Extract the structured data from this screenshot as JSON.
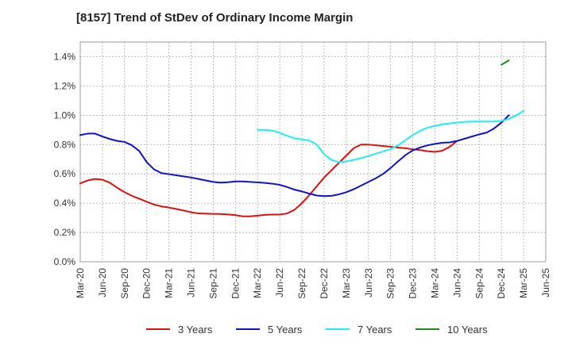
{
  "chart_data": {
    "type": "line",
    "title": "[8157]  Trend of StDev of Ordinary Income Margin",
    "xlabel": "",
    "ylabel": "",
    "ylim": [
      0,
      1.5
    ],
    "x_ticks": [
      "Mar-20",
      "Jun-20",
      "Sep-20",
      "Dec-20",
      "Mar-21",
      "Jun-21",
      "Sep-21",
      "Dec-21",
      "Mar-22",
      "Jun-22",
      "Sep-22",
      "Dec-22",
      "Mar-23",
      "Jun-23",
      "Sep-23",
      "Dec-23",
      "Mar-24",
      "Jun-24",
      "Sep-24",
      "Dec-24",
      "Mar-25",
      "Jun-25"
    ],
    "y_ticks": [
      0.0,
      0.2,
      0.4,
      0.6,
      0.8,
      1.0,
      1.2,
      1.4
    ],
    "y_tick_labels": [
      "0.0%",
      "0.2%",
      "0.4%",
      "0.6%",
      "0.8%",
      "1.0%",
      "1.2%",
      "1.4%"
    ],
    "grid": true,
    "legend_position": "bottom",
    "series": [
      {
        "name": "3 Years",
        "color": "#dd1111",
        "start_index": 0,
        "values": [
          0.535,
          0.555,
          0.565,
          0.56,
          0.54,
          0.505,
          0.475,
          0.45,
          0.43,
          0.41,
          0.39,
          0.378,
          0.37,
          0.36,
          0.35,
          0.338,
          0.33,
          0.328,
          0.327,
          0.326,
          0.323,
          0.318,
          0.31,
          0.31,
          0.315,
          0.32,
          0.322,
          0.322,
          0.33,
          0.355,
          0.4,
          0.455,
          0.515,
          0.575,
          0.625,
          0.675,
          0.725,
          0.775,
          0.8,
          0.8,
          0.795,
          0.79,
          0.785,
          0.78,
          0.775,
          0.768,
          0.762,
          0.755,
          0.75,
          0.758,
          0.785,
          0.825
        ]
      },
      {
        "name": "5 Years",
        "color": "#1111cc",
        "start_index": 0,
        "values": [
          0.865,
          0.875,
          0.875,
          0.855,
          0.838,
          0.825,
          0.818,
          0.795,
          0.755,
          0.68,
          0.63,
          0.605,
          0.598,
          0.59,
          0.583,
          0.575,
          0.565,
          0.555,
          0.545,
          0.54,
          0.543,
          0.548,
          0.548,
          0.545,
          0.542,
          0.538,
          0.533,
          0.525,
          0.51,
          0.492,
          0.48,
          0.465,
          0.452,
          0.448,
          0.45,
          0.46,
          0.475,
          0.495,
          0.52,
          0.545,
          0.57,
          0.6,
          0.64,
          0.685,
          0.728,
          0.76,
          0.78,
          0.795,
          0.805,
          0.812,
          0.815,
          0.825,
          0.84,
          0.855,
          0.87,
          0.882,
          0.91,
          0.95,
          1.0
        ]
      },
      {
        "name": "7 Years",
        "color": "#22eeee",
        "start_index": 24,
        "values": [
          0.9,
          0.9,
          0.895,
          0.88,
          0.86,
          0.843,
          0.835,
          0.828,
          0.8,
          0.735,
          0.695,
          0.68,
          0.685,
          0.695,
          0.708,
          0.722,
          0.738,
          0.753,
          0.77,
          0.795,
          0.83,
          0.865,
          0.895,
          0.915,
          0.928,
          0.938,
          0.945,
          0.95,
          0.955,
          0.957,
          0.958,
          0.957,
          0.958,
          0.962,
          0.975,
          1.0,
          1.03
        ]
      },
      {
        "name": "10 Years",
        "color": "#228822",
        "start_index": 57,
        "values": [
          1.345,
          1.375
        ]
      }
    ],
    "x_step_months": 1
  }
}
